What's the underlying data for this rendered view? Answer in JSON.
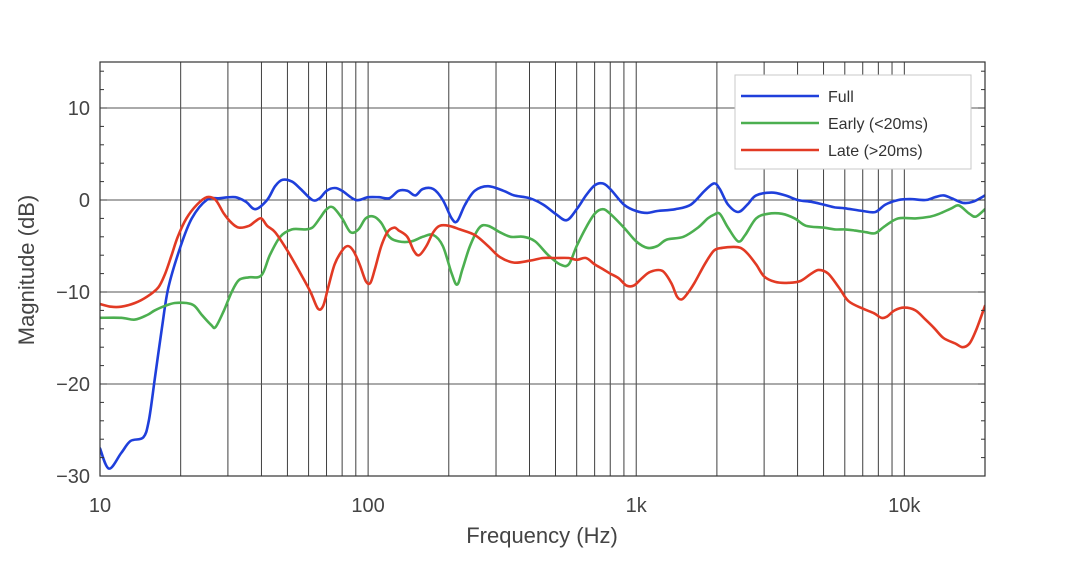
{
  "chart_data": {
    "type": "line",
    "xlabel": "Frequency (Hz)",
    "ylabel": "Magnitude (dB)",
    "x_scale": "log",
    "xlim": [
      10,
      20000
    ],
    "ylim": [
      -30,
      15
    ],
    "x_ticks": [
      10,
      100,
      1000,
      10000
    ],
    "x_tick_labels": [
      "10",
      "100",
      "1k",
      "10k"
    ],
    "y_ticks": [
      -30,
      -20,
      -10,
      0,
      10
    ],
    "y_tick_labels": [
      "−30",
      "−20",
      "−10",
      "0",
      "10"
    ],
    "grid": true,
    "legend_position": "top-right",
    "series": [
      {
        "name": "Full",
        "color": "#1f3fdb",
        "points": [
          [
            10,
            -27
          ],
          [
            10.8,
            -29.2
          ],
          [
            12,
            -27.5
          ],
          [
            13,
            -26.2
          ],
          [
            14.5,
            -25.8
          ],
          [
            15.2,
            -24
          ],
          [
            16,
            -19.5
          ],
          [
            17,
            -14
          ],
          [
            18,
            -9.5
          ],
          [
            20,
            -5
          ],
          [
            22,
            -2
          ],
          [
            25,
            0
          ],
          [
            28,
            0.2
          ],
          [
            32,
            0.3
          ],
          [
            35,
            -0.2
          ],
          [
            38,
            -1
          ],
          [
            42,
            0
          ],
          [
            45,
            1.5
          ],
          [
            48,
            2.2
          ],
          [
            52,
            2
          ],
          [
            56,
            1.2
          ],
          [
            62,
            0
          ],
          [
            66,
            0.2
          ],
          [
            70,
            1
          ],
          [
            75,
            1.3
          ],
          [
            80,
            1
          ],
          [
            90,
            0
          ],
          [
            100,
            0.3
          ],
          [
            110,
            0.3
          ],
          [
            120,
            0.2
          ],
          [
            130,
            1
          ],
          [
            140,
            1
          ],
          [
            150,
            0.5
          ],
          [
            160,
            1.2
          ],
          [
            175,
            1.2
          ],
          [
            190,
            0
          ],
          [
            205,
            -2
          ],
          [
            215,
            -2.3
          ],
          [
            230,
            -0.5
          ],
          [
            250,
            1
          ],
          [
            280,
            1.5
          ],
          [
            320,
            1
          ],
          [
            350,
            0.5
          ],
          [
            400,
            0.2
          ],
          [
            450,
            -0.5
          ],
          [
            500,
            -1.5
          ],
          [
            550,
            -2.2
          ],
          [
            600,
            -1
          ],
          [
            650,
            0.5
          ],
          [
            700,
            1.6
          ],
          [
            750,
            1.8
          ],
          [
            800,
            1.2
          ],
          [
            900,
            -0.5
          ],
          [
            1000,
            -1.2
          ],
          [
            1100,
            -1.4
          ],
          [
            1200,
            -1.2
          ],
          [
            1400,
            -1
          ],
          [
            1600,
            -0.5
          ],
          [
            1800,
            1
          ],
          [
            1950,
            1.8
          ],
          [
            2050,
            1.2
          ],
          [
            2200,
            -0.5
          ],
          [
            2400,
            -1.3
          ],
          [
            2600,
            -0.5
          ],
          [
            2800,
            0.5
          ],
          [
            3200,
            0.8
          ],
          [
            3600,
            0.5
          ],
          [
            4000,
            0
          ],
          [
            4500,
            -0.2
          ],
          [
            5000,
            -0.5
          ],
          [
            5500,
            -0.8
          ],
          [
            6000,
            -0.9
          ],
          [
            7000,
            -1.2
          ],
          [
            7800,
            -1.3
          ],
          [
            8500,
            -0.5
          ],
          [
            9500,
            0
          ],
          [
            10500,
            0.1
          ],
          [
            12000,
            0
          ],
          [
            13000,
            0.3
          ],
          [
            14000,
            0.5
          ],
          [
            15000,
            0.2
          ],
          [
            16500,
            -0.3
          ],
          [
            18000,
            -0.2
          ],
          [
            20000,
            0.5
          ]
        ]
      },
      {
        "name": "Early (<20ms)",
        "color": "#4caf50",
        "points": [
          [
            10,
            -12.8
          ],
          [
            12,
            -12.8
          ],
          [
            13.5,
            -13
          ],
          [
            15,
            -12.5
          ],
          [
            16,
            -12
          ],
          [
            17.5,
            -11.5
          ],
          [
            19,
            -11.2
          ],
          [
            21,
            -11.2
          ],
          [
            22.5,
            -11.5
          ],
          [
            24,
            -12.5
          ],
          [
            26,
            -13.6
          ],
          [
            27,
            -13.8
          ],
          [
            29,
            -12
          ],
          [
            31,
            -10
          ],
          [
            33,
            -8.7
          ],
          [
            36,
            -8.4
          ],
          [
            40,
            -8.2
          ],
          [
            43,
            -6
          ],
          [
            47,
            -4
          ],
          [
            52,
            -3.2
          ],
          [
            58,
            -3.2
          ],
          [
            62,
            -3
          ],
          [
            66,
            -2
          ],
          [
            70,
            -1
          ],
          [
            74,
            -0.8
          ],
          [
            80,
            -2
          ],
          [
            86,
            -3.5
          ],
          [
            92,
            -3.2
          ],
          [
            98,
            -2
          ],
          [
            105,
            -1.8
          ],
          [
            112,
            -2.5
          ],
          [
            120,
            -4
          ],
          [
            130,
            -4.5
          ],
          [
            145,
            -4.5
          ],
          [
            160,
            -4
          ],
          [
            175,
            -3.8
          ],
          [
            190,
            -5
          ],
          [
            205,
            -8
          ],
          [
            215,
            -9.2
          ],
          [
            225,
            -7.5
          ],
          [
            240,
            -5
          ],
          [
            260,
            -3
          ],
          [
            280,
            -2.8
          ],
          [
            310,
            -3.5
          ],
          [
            340,
            -4
          ],
          [
            380,
            -4
          ],
          [
            420,
            -4.5
          ],
          [
            470,
            -6
          ],
          [
            520,
            -7
          ],
          [
            560,
            -7
          ],
          [
            600,
            -5
          ],
          [
            650,
            -3
          ],
          [
            700,
            -1.5
          ],
          [
            750,
            -1
          ],
          [
            800,
            -1.5
          ],
          [
            900,
            -3
          ],
          [
            1000,
            -4.5
          ],
          [
            1100,
            -5.2
          ],
          [
            1200,
            -5
          ],
          [
            1300,
            -4.3
          ],
          [
            1500,
            -4
          ],
          [
            1700,
            -3
          ],
          [
            1850,
            -2
          ],
          [
            1950,
            -1.6
          ],
          [
            2050,
            -1.5
          ],
          [
            2200,
            -3
          ],
          [
            2400,
            -4.5
          ],
          [
            2550,
            -3.8
          ],
          [
            2800,
            -2
          ],
          [
            3100,
            -1.5
          ],
          [
            3500,
            -1.5
          ],
          [
            3900,
            -2
          ],
          [
            4300,
            -2.8
          ],
          [
            5000,
            -3
          ],
          [
            5500,
            -3.2
          ],
          [
            6000,
            -3.2
          ],
          [
            6500,
            -3.3
          ],
          [
            7200,
            -3.5
          ],
          [
            7800,
            -3.6
          ],
          [
            8500,
            -2.8
          ],
          [
            9500,
            -2
          ],
          [
            11000,
            -2
          ],
          [
            12500,
            -1.8
          ],
          [
            13500,
            -1.5
          ],
          [
            15000,
            -0.9
          ],
          [
            16000,
            -0.6
          ],
          [
            17500,
            -1.5
          ],
          [
            18500,
            -1.8
          ],
          [
            20000,
            -1
          ]
        ]
      },
      {
        "name": "Late (>20ms)",
        "color": "#e23a24",
        "points": [
          [
            10,
            -11.3
          ],
          [
            11,
            -11.6
          ],
          [
            12,
            -11.6
          ],
          [
            13.5,
            -11.2
          ],
          [
            15,
            -10.5
          ],
          [
            16.5,
            -9.5
          ],
          [
            17.5,
            -8
          ],
          [
            18.5,
            -6
          ],
          [
            19.5,
            -4
          ],
          [
            21,
            -2
          ],
          [
            23,
            -0.5
          ],
          [
            25,
            0.3
          ],
          [
            27,
            0
          ],
          [
            29,
            -1.5
          ],
          [
            31,
            -2.5
          ],
          [
            33,
            -3
          ],
          [
            36,
            -2.8
          ],
          [
            38,
            -2.3
          ],
          [
            40,
            -2
          ],
          [
            42,
            -2.8
          ],
          [
            45,
            -3.5
          ],
          [
            50,
            -5.5
          ],
          [
            56,
            -8
          ],
          [
            61,
            -10
          ],
          [
            65,
            -11.8
          ],
          [
            68,
            -11.5
          ],
          [
            71,
            -9.5
          ],
          [
            75,
            -7
          ],
          [
            80,
            -5.5
          ],
          [
            84,
            -5
          ],
          [
            88,
            -5.5
          ],
          [
            93,
            -7
          ],
          [
            98,
            -8.8
          ],
          [
            102,
            -9
          ],
          [
            106,
            -7.5
          ],
          [
            112,
            -5
          ],
          [
            118,
            -3.5
          ],
          [
            125,
            -3
          ],
          [
            130,
            -3.3
          ],
          [
            140,
            -4
          ],
          [
            148,
            -5.5
          ],
          [
            155,
            -6
          ],
          [
            165,
            -5
          ],
          [
            175,
            -3.5
          ],
          [
            185,
            -2.8
          ],
          [
            200,
            -2.8
          ],
          [
            220,
            -3.2
          ],
          [
            250,
            -3.8
          ],
          [
            280,
            -5
          ],
          [
            310,
            -6.2
          ],
          [
            350,
            -6.8
          ],
          [
            400,
            -6.6
          ],
          [
            450,
            -6.3
          ],
          [
            500,
            -6.3
          ],
          [
            560,
            -6.3
          ],
          [
            600,
            -6.5
          ],
          [
            650,
            -6.3
          ],
          [
            700,
            -7
          ],
          [
            750,
            -7.5
          ],
          [
            800,
            -8
          ],
          [
            860,
            -8.5
          ],
          [
            920,
            -9.3
          ],
          [
            980,
            -9.3
          ],
          [
            1050,
            -8.5
          ],
          [
            1130,
            -7.8
          ],
          [
            1250,
            -7.7
          ],
          [
            1350,
            -9
          ],
          [
            1420,
            -10.5
          ],
          [
            1480,
            -10.8
          ],
          [
            1550,
            -10.2
          ],
          [
            1650,
            -9
          ],
          [
            1800,
            -7
          ],
          [
            1950,
            -5.5
          ],
          [
            2100,
            -5.2
          ],
          [
            2300,
            -5.1
          ],
          [
            2450,
            -5.2
          ],
          [
            2600,
            -5.8
          ],
          [
            2800,
            -7
          ],
          [
            3000,
            -8.3
          ],
          [
            3300,
            -8.9
          ],
          [
            3700,
            -9
          ],
          [
            4100,
            -8.8
          ],
          [
            4500,
            -8
          ],
          [
            4800,
            -7.6
          ],
          [
            5200,
            -8
          ],
          [
            5700,
            -9.5
          ],
          [
            6200,
            -11
          ],
          [
            7000,
            -11.8
          ],
          [
            7700,
            -12.3
          ],
          [
            8200,
            -12.8
          ],
          [
            8600,
            -12.7
          ],
          [
            9200,
            -12
          ],
          [
            10000,
            -11.7
          ],
          [
            11000,
            -12
          ],
          [
            12000,
            -13
          ],
          [
            13000,
            -14
          ],
          [
            14000,
            -15
          ],
          [
            15500,
            -15.6
          ],
          [
            16500,
            -16
          ],
          [
            17500,
            -15.6
          ],
          [
            18500,
            -14.2
          ],
          [
            20000,
            -11.5
          ]
        ]
      }
    ]
  }
}
